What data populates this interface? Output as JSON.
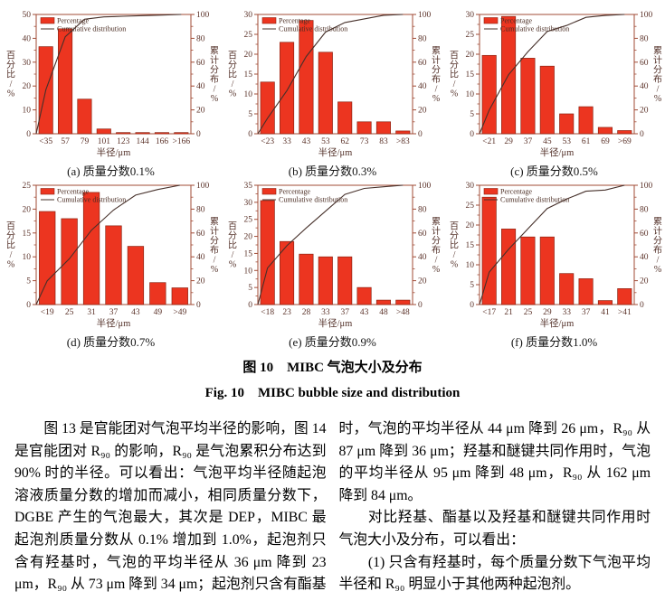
{
  "figure": {
    "caption_zh": "图 10　MIBC 气泡大小及分布",
    "caption_en": "Fig. 10　MIBC bubble size and distribution",
    "legend": {
      "bar": "Percentage",
      "line": "Cumulative distribution"
    },
    "colors": {
      "bar_fill": "#ec3520",
      "bar_stroke": "#8e2413",
      "axis": "#a14b36",
      "tick_text": "#5c332a",
      "curve": "#46302a"
    }
  },
  "chart_data": [
    {
      "id": "a",
      "type": "bar",
      "subcaption": "(a) 质量分数0.1%",
      "categories": [
        "<35",
        "57",
        "79",
        "101",
        "123",
        "144",
        "166",
        ">166"
      ],
      "values": [
        36.5,
        44,
        14.5,
        2,
        0.5,
        0.5,
        0.5,
        0.5
      ],
      "series_overlay": "cumulative-line",
      "title": "",
      "xlabel": "半径/μm",
      "ylabel": "百分比/%",
      "y2label": "累计分布/%",
      "ylim": [
        0,
        50
      ],
      "ystep": 10,
      "y2lim": [
        0,
        100
      ],
      "y2step": 20,
      "legend_position": "top-left",
      "grid": false
    },
    {
      "id": "b",
      "type": "bar",
      "subcaption": "(b) 质量分数0.3%",
      "categories": [
        "<23",
        "33",
        "43",
        "53",
        "62",
        "73",
        "83",
        ">83"
      ],
      "values": [
        13,
        23,
        28.5,
        20.5,
        8,
        3,
        3,
        0.7
      ],
      "series_overlay": "cumulative-line",
      "title": "",
      "xlabel": "半径/μm",
      "ylabel": "百分比/%",
      "y2label": "累计分布/%",
      "ylim": [
        0,
        30
      ],
      "ystep": 5,
      "y2lim": [
        0,
        100
      ],
      "y2step": 20,
      "legend_position": "top-left",
      "grid": false
    },
    {
      "id": "c",
      "type": "bar",
      "subcaption": "(c) 质量分数0.5%",
      "categories": [
        "<21",
        "29",
        "37",
        "45",
        "53",
        "61",
        "69",
        ">69"
      ],
      "values": [
        19.7,
        29.5,
        19,
        17,
        5,
        6.8,
        1.6,
        0.8
      ],
      "series_overlay": "cumulative-line",
      "title": "",
      "xlabel": "半径/μm",
      "ylabel": "百分比/%",
      "y2label": "累计分布/%",
      "ylim": [
        0,
        30
      ],
      "ystep": 5,
      "y2lim": [
        0,
        100
      ],
      "y2step": 20,
      "legend_position": "top-left",
      "grid": false
    },
    {
      "id": "d",
      "type": "bar",
      "subcaption": "(d) 质量分数0.7%",
      "categories": [
        "<19",
        "25",
        "31",
        "37",
        "43",
        "49",
        ">49"
      ],
      "values": [
        19.5,
        18,
        23.5,
        16.5,
        12.2,
        4.6,
        3.5
      ],
      "series_overlay": "cumulative-line",
      "title": "",
      "xlabel": "半径/μm",
      "ylabel": "百分比/%",
      "y2label": "累计分布/%",
      "ylim": [
        0,
        25
      ],
      "ystep": 5,
      "y2lim": [
        0,
        100
      ],
      "y2step": 20,
      "legend_position": "top-left",
      "grid": false
    },
    {
      "id": "e",
      "type": "bar",
      "subcaption": "(e) 质量分数0.9%",
      "categories": [
        "<18",
        "23",
        "28",
        "33",
        "37",
        "43",
        "48",
        ">48"
      ],
      "values": [
        30.5,
        18.5,
        14.8,
        14,
        14,
        5,
        1.3,
        1.3
      ],
      "series_overlay": "cumulative-line",
      "title": "",
      "xlabel": "半径/μm",
      "ylabel": "百分比/%",
      "y2label": "累计分布/%",
      "ylim": [
        0,
        35
      ],
      "ystep": 5,
      "y2lim": [
        0,
        100
      ],
      "y2step": 20,
      "legend_position": "top-left",
      "grid": false
    },
    {
      "id": "f",
      "type": "bar",
      "subcaption": "(f) 质量分数1.0%",
      "categories": [
        "<17",
        "21",
        "25",
        "29",
        "33",
        "37",
        "41",
        ">41"
      ],
      "values": [
        27,
        19,
        17,
        17,
        7.8,
        6.5,
        1,
        4
      ],
      "series_overlay": "cumulative-line",
      "title": "",
      "xlabel": "半径/μm",
      "ylabel": "百分比/%",
      "y2label": "累计分布/%",
      "ylim": [
        0,
        30
      ],
      "ystep": 5,
      "y2lim": [
        0,
        100
      ],
      "y2step": 20,
      "legend_position": "top-left",
      "grid": false
    }
  ],
  "article": {
    "left_column": [
      {
        "text": "图 13 是官能团对气泡平均半径的影响，图 14",
        "indent": true,
        "fill": true
      },
      {
        "text": "是官能团对 R₉₀ 的影响，R₉₀ 是气泡累积分布达到",
        "indent": false,
        "fill": true
      },
      {
        "text": "90% 时的半径。可以看出：气泡平均半径随起泡剂",
        "indent": false,
        "fill": true
      },
      {
        "text": "溶液质量分数的增加而减小，相同质量分数下，",
        "indent": false,
        "fill": true
      },
      {
        "text": "DGBE 产生的气泡最大，其次是 DEP，MIBC 最小。",
        "indent": false,
        "fill": true
      },
      {
        "text": "起泡剂质量分数从 0.1% 增加到 1.0%，起泡剂只",
        "indent": false,
        "fill": true
      },
      {
        "text": "含有羟基时，气泡的平均半径从 36 μm 降到 23",
        "indent": false,
        "fill": true
      },
      {
        "text": "μm，R₉₀ 从 73 μm 降到 34 μm；起泡剂只含有酯基",
        "indent": false,
        "fill": true
      }
    ],
    "right_column": [
      {
        "text": "时，气泡的平均半径从 44 μm 降到 26 μm，R₉₀ 从",
        "indent": false,
        "fill": true
      },
      {
        "text": "87 μm 降到 36 μm；羟基和醚键共同作用时，气泡",
        "indent": false,
        "fill": true
      },
      {
        "text": "的平均半径从 95 μm 降到 48 μm，R₉₀ 从 162 μm",
        "indent": false,
        "fill": true
      },
      {
        "text": "降到 84 μm。",
        "indent": false,
        "fill": false
      },
      {
        "text": "对比羟基、酯基以及羟基和醚键共同作用时的",
        "indent": true,
        "fill": true
      },
      {
        "text": "气泡大小及分布，可以看出：",
        "indent": false,
        "fill": false
      },
      {
        "text": "(1) 只含有羟基时，每个质量分数下气泡平均",
        "indent": true,
        "fill": true
      },
      {
        "text": "半径和 R₉₀ 明显小于其他两种起泡剂。",
        "indent": false,
        "fill": false
      }
    ]
  }
}
